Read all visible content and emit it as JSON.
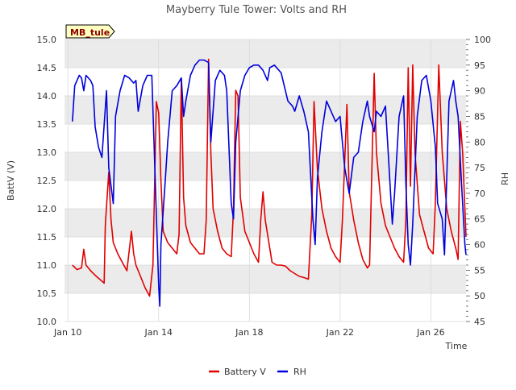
{
  "chart_data": {
    "type": "line",
    "title": "Mayberry Tule Tower: Volts and RH",
    "xlabel": "Time",
    "ylabel_left": "BattV (V)",
    "ylabel_right": "RH",
    "station_label": "MB_tule",
    "x_domain_days": [
      9.85,
      27.55
    ],
    "x_ticks": [
      {
        "day": 10,
        "label": "Jan 10"
      },
      {
        "day": 14,
        "label": "Jan 14"
      },
      {
        "day": 18,
        "label": "Jan 18"
      },
      {
        "day": 22,
        "label": "Jan 22"
      },
      {
        "day": 26,
        "label": "Jan 26"
      }
    ],
    "y_left": {
      "min": 10.0,
      "max": 15.0,
      "ticks": [
        "10.0",
        "10.5",
        "11.0",
        "11.5",
        "12.0",
        "12.5",
        "13.0",
        "13.5",
        "14.0",
        "14.5",
        "15.0"
      ]
    },
    "y_right": {
      "min": 45,
      "max": 100,
      "ticks": [
        "45",
        "50",
        "55",
        "60",
        "65",
        "70",
        "75",
        "80",
        "85",
        "90",
        "95",
        "100"
      ]
    },
    "legend": {
      "placement": "bottom-center",
      "items": [
        "Battery V",
        "RH"
      ]
    },
    "colors": {
      "battery": "#e00000",
      "rh": "#0000dd",
      "band": "#ebebeb",
      "grid": "#d9d9d9",
      "label_bg": "#ffffc0",
      "label_text": "#8b0000"
    },
    "series": [
      {
        "name": "Battery V",
        "axis": "left",
        "color": "#e00000",
        "points": [
          [
            10.2,
            11.0
          ],
          [
            10.4,
            10.92
          ],
          [
            10.6,
            10.95
          ],
          [
            10.7,
            11.28
          ],
          [
            10.8,
            11.0
          ],
          [
            11.0,
            10.9
          ],
          [
            11.2,
            10.82
          ],
          [
            11.4,
            10.75
          ],
          [
            11.6,
            10.68
          ],
          [
            11.65,
            11.7
          ],
          [
            11.8,
            12.65
          ],
          [
            11.9,
            11.8
          ],
          [
            12.0,
            11.4
          ],
          [
            12.2,
            11.2
          ],
          [
            12.4,
            11.05
          ],
          [
            12.6,
            10.9
          ],
          [
            12.8,
            11.6
          ],
          [
            12.9,
            11.2
          ],
          [
            13.0,
            11.0
          ],
          [
            13.2,
            10.8
          ],
          [
            13.4,
            10.6
          ],
          [
            13.6,
            10.45
          ],
          [
            13.75,
            11.0
          ],
          [
            13.9,
            13.9
          ],
          [
            14.0,
            13.7
          ],
          [
            14.1,
            12.5
          ],
          [
            14.2,
            11.6
          ],
          [
            14.4,
            11.4
          ],
          [
            14.6,
            11.3
          ],
          [
            14.8,
            11.2
          ],
          [
            14.9,
            11.55
          ],
          [
            15.0,
            14.3
          ],
          [
            15.1,
            12.2
          ],
          [
            15.2,
            11.7
          ],
          [
            15.4,
            11.4
          ],
          [
            15.6,
            11.3
          ],
          [
            15.8,
            11.2
          ],
          [
            16.0,
            11.2
          ],
          [
            16.1,
            11.8
          ],
          [
            16.2,
            14.65
          ],
          [
            16.3,
            13.0
          ],
          [
            16.4,
            12.0
          ],
          [
            16.6,
            11.6
          ],
          [
            16.8,
            11.3
          ],
          [
            17.0,
            11.2
          ],
          [
            17.2,
            11.15
          ],
          [
            17.3,
            12.0
          ],
          [
            17.4,
            14.1
          ],
          [
            17.5,
            14.0
          ],
          [
            17.6,
            12.2
          ],
          [
            17.8,
            11.6
          ],
          [
            18.0,
            11.4
          ],
          [
            18.2,
            11.2
          ],
          [
            18.4,
            11.05
          ],
          [
            18.5,
            11.8
          ],
          [
            18.6,
            12.3
          ],
          [
            18.7,
            11.8
          ],
          [
            18.9,
            11.3
          ],
          [
            19.0,
            11.05
          ],
          [
            19.2,
            11.0
          ],
          [
            19.4,
            11.0
          ],
          [
            19.6,
            10.98
          ],
          [
            19.8,
            10.9
          ],
          [
            20.0,
            10.85
          ],
          [
            20.2,
            10.8
          ],
          [
            20.4,
            10.78
          ],
          [
            20.6,
            10.75
          ],
          [
            20.75,
            11.9
          ],
          [
            20.85,
            13.9
          ],
          [
            21.0,
            12.7
          ],
          [
            21.2,
            12.0
          ],
          [
            21.4,
            11.6
          ],
          [
            21.6,
            11.3
          ],
          [
            21.8,
            11.15
          ],
          [
            22.0,
            11.05
          ],
          [
            22.1,
            11.8
          ],
          [
            22.3,
            13.85
          ],
          [
            22.4,
            12.3
          ],
          [
            22.6,
            11.8
          ],
          [
            22.8,
            11.4
          ],
          [
            23.0,
            11.1
          ],
          [
            23.2,
            10.95
          ],
          [
            23.3,
            11.0
          ],
          [
            23.5,
            14.4
          ],
          [
            23.6,
            13.0
          ],
          [
            23.8,
            12.1
          ],
          [
            24.0,
            11.7
          ],
          [
            24.2,
            11.5
          ],
          [
            24.4,
            11.3
          ],
          [
            24.6,
            11.15
          ],
          [
            24.8,
            11.05
          ],
          [
            24.9,
            11.8
          ],
          [
            25.0,
            14.5
          ],
          [
            25.1,
            12.4
          ],
          [
            25.2,
            14.55
          ],
          [
            25.3,
            13.0
          ],
          [
            25.5,
            11.9
          ],
          [
            25.7,
            11.6
          ],
          [
            25.9,
            11.3
          ],
          [
            26.1,
            11.2
          ],
          [
            26.2,
            12.1
          ],
          [
            26.35,
            14.55
          ],
          [
            26.5,
            13.0
          ],
          [
            26.7,
            12.0
          ],
          [
            26.9,
            11.6
          ],
          [
            27.1,
            11.3
          ],
          [
            27.2,
            11.1
          ],
          [
            27.3,
            13.55
          ],
          [
            27.4,
            13.0
          ],
          [
            27.5,
            12.0
          ],
          [
            27.55,
            11.5
          ]
        ]
      },
      {
        "name": "RH",
        "axis": "right",
        "color": "#0000dd",
        "points": [
          [
            10.2,
            84
          ],
          [
            10.3,
            91
          ],
          [
            10.5,
            93
          ],
          [
            10.6,
            92.5
          ],
          [
            10.7,
            90
          ],
          [
            10.8,
            93
          ],
          [
            11.0,
            92
          ],
          [
            11.1,
            91
          ],
          [
            11.2,
            83
          ],
          [
            11.35,
            79
          ],
          [
            11.5,
            77
          ],
          [
            11.7,
            90
          ],
          [
            11.8,
            75
          ],
          [
            12.0,
            68
          ],
          [
            12.1,
            85
          ],
          [
            12.3,
            90
          ],
          [
            12.5,
            93
          ],
          [
            12.7,
            92.5
          ],
          [
            12.9,
            91.5
          ],
          [
            13.0,
            92
          ],
          [
            13.1,
            86
          ],
          [
            13.3,
            91
          ],
          [
            13.5,
            93
          ],
          [
            13.7,
            93
          ],
          [
            13.9,
            66
          ],
          [
            14.0,
            52
          ],
          [
            14.05,
            48
          ],
          [
            14.1,
            60
          ],
          [
            14.3,
            73
          ],
          [
            14.4,
            80
          ],
          [
            14.6,
            90
          ],
          [
            14.8,
            91
          ],
          [
            15.0,
            92.5
          ],
          [
            15.1,
            85
          ],
          [
            15.2,
            88
          ],
          [
            15.4,
            93
          ],
          [
            15.6,
            95
          ],
          [
            15.8,
            96
          ],
          [
            16.0,
            96
          ],
          [
            16.2,
            95.5
          ],
          [
            16.3,
            80
          ],
          [
            16.5,
            92
          ],
          [
            16.7,
            94
          ],
          [
            16.9,
            93
          ],
          [
            17.0,
            90
          ],
          [
            17.2,
            68
          ],
          [
            17.3,
            65
          ],
          [
            17.4,
            80
          ],
          [
            17.6,
            90
          ],
          [
            17.8,
            93
          ],
          [
            18.0,
            94.5
          ],
          [
            18.2,
            95
          ],
          [
            18.4,
            95
          ],
          [
            18.6,
            94
          ],
          [
            18.8,
            92
          ],
          [
            18.9,
            94.5
          ],
          [
            19.1,
            95
          ],
          [
            19.4,
            93.5
          ],
          [
            19.7,
            88
          ],
          [
            19.9,
            87
          ],
          [
            20.0,
            86
          ],
          [
            20.2,
            89
          ],
          [
            20.4,
            86
          ],
          [
            20.6,
            82
          ],
          [
            20.8,
            65
          ],
          [
            20.9,
            60
          ],
          [
            21.0,
            73
          ],
          [
            21.2,
            82
          ],
          [
            21.4,
            88
          ],
          [
            21.6,
            86
          ],
          [
            21.8,
            84
          ],
          [
            22.0,
            85
          ],
          [
            22.2,
            75
          ],
          [
            22.4,
            70
          ],
          [
            22.6,
            77
          ],
          [
            22.8,
            78
          ],
          [
            23.0,
            84
          ],
          [
            23.2,
            88
          ],
          [
            23.3,
            85
          ],
          [
            23.5,
            82
          ],
          [
            23.6,
            86
          ],
          [
            23.8,
            85
          ],
          [
            24.0,
            87
          ],
          [
            24.2,
            72
          ],
          [
            24.3,
            64
          ],
          [
            24.4,
            70
          ],
          [
            24.6,
            85
          ],
          [
            24.8,
            89
          ],
          [
            24.9,
            72
          ],
          [
            25.0,
            60
          ],
          [
            25.1,
            56
          ],
          [
            25.2,
            64
          ],
          [
            25.4,
            85
          ],
          [
            25.6,
            92
          ],
          [
            25.8,
            93
          ],
          [
            26.0,
            88
          ],
          [
            26.2,
            79
          ],
          [
            26.3,
            68
          ],
          [
            26.5,
            65
          ],
          [
            26.6,
            58
          ],
          [
            26.8,
            88
          ],
          [
            27.0,
            92
          ],
          [
            27.1,
            88
          ],
          [
            27.2,
            85
          ],
          [
            27.35,
            72
          ],
          [
            27.5,
            60
          ],
          [
            27.55,
            58
          ]
        ]
      }
    ]
  }
}
